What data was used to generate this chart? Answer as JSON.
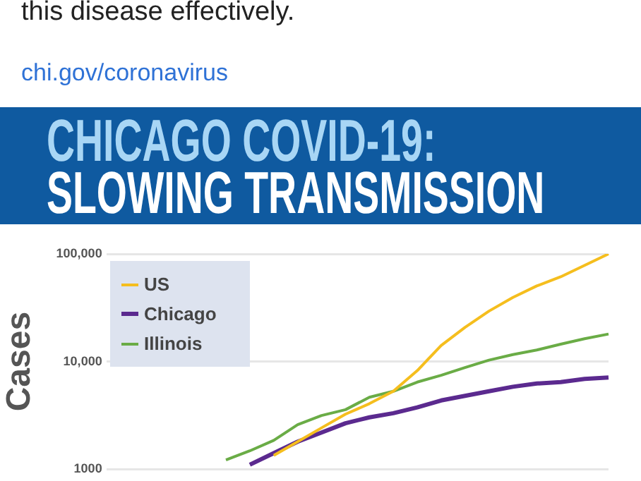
{
  "chart_data": {
    "type": "line",
    "title": "CHICAGO COVID-19:",
    "subtitle": "SLOWING TRANSMISSION",
    "ylabel": "Cases",
    "annotations": [
      "this disease effectively.",
      "chi.gov/coronavirus"
    ],
    "categories": [
      null,
      null,
      null,
      null,
      null,
      null,
      null,
      null,
      null,
      null,
      null,
      null,
      null,
      null,
      null,
      null,
      null,
      null,
      null,
      null,
      null,
      null
    ],
    "series": [
      {
        "name": "US",
        "color": "#f5be1e",
        "values": [
          null,
          null,
          null,
          null,
          null,
          null,
          null,
          1340,
          1800,
          2420,
          3240,
          4060,
          5290,
          8220,
          14100,
          20800,
          29400,
          39400,
          50400,
          61300,
          78300,
          100000
        ]
      },
      {
        "name": "Chicago",
        "color": "#5b2a8f",
        "values": [
          null,
          null,
          null,
          null,
          null,
          null,
          1100,
          1410,
          1800,
          2190,
          2670,
          3030,
          3310,
          3750,
          4350,
          4800,
          5290,
          5830,
          6250,
          6440,
          6890,
          7100
        ]
      },
      {
        "name": "Illinois",
        "color": "#6aac46",
        "values": [
          null,
          null,
          null,
          null,
          null,
          1216,
          1480,
          1850,
          2590,
          3150,
          3570,
          4660,
          5290,
          6440,
          7450,
          8800,
          10300,
          11600,
          12800,
          14500,
          16300,
          18000
        ]
      }
    ],
    "log": true,
    "ylim": [
      1000,
      100000
    ],
    "yticks": [
      {
        "value": 1000,
        "label": "1000"
      },
      {
        "value": 10000,
        "label": "10,000"
      },
      {
        "value": 100000,
        "label": "100,000"
      }
    ],
    "grid": "y",
    "legend": "top left",
    "tick_labels": "y",
    "marker": "none",
    "line_style": "solid"
  }
}
